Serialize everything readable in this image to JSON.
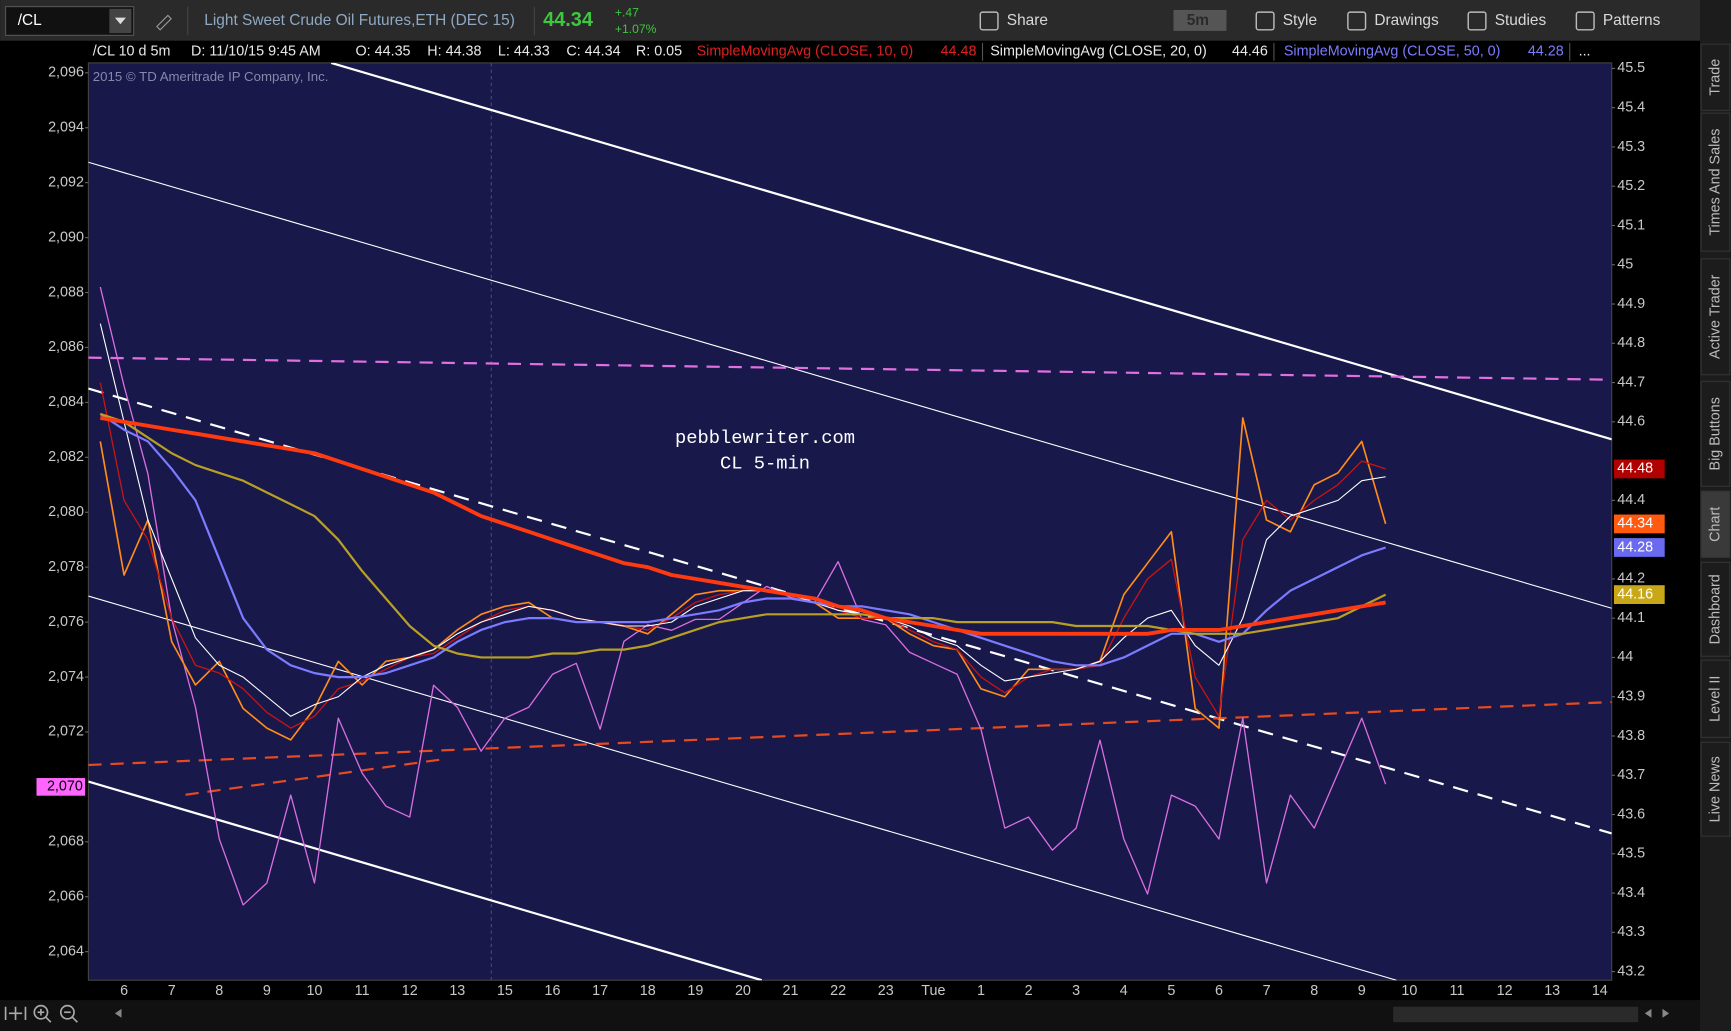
{
  "toolbar": {
    "symbol": "/CL",
    "description": "Light Sweet Crude Oil Futures,ETH (DEC 15)",
    "last": "44.34",
    "change": "+.47",
    "change_pct": "+1.07%",
    "buttons": [
      "Share",
      "5m",
      "Style",
      "Drawings",
      "Studies",
      "Patterns"
    ]
  },
  "info_bar": {
    "symbol": "/CL 10 d 5m",
    "date": "D: 11/10/15 9:45 AM",
    "open": "O: 44.35",
    "high": "H: 44.38",
    "low": "L: 44.33",
    "close": "C: 44.34",
    "range": "R: 0.05",
    "more": "..."
  },
  "side_tabs": [
    "Trade",
    "Times And Sales",
    "Active Trader",
    "Big Buttons",
    "Chart",
    "Dashboard",
    "Level II",
    "Live News"
  ],
  "chart_data": {
    "type": "line",
    "watermark": "2015 © TD Ameritrade IP Company, Inc.",
    "annotations": [
      "pebblewriter.com",
      "CL 5-min"
    ],
    "categories": [
      null,
      "6",
      null,
      "7",
      null,
      "8",
      null,
      "9",
      null,
      "10",
      null,
      "11",
      null,
      "12",
      null,
      "13",
      null,
      "15",
      null,
      "16",
      null,
      "17",
      null,
      "18",
      null,
      "19",
      null,
      "20",
      null,
      "21",
      null,
      "22",
      null,
      "23",
      null,
      "Tue",
      null,
      "1",
      null,
      "2",
      null,
      "3",
      null,
      "4",
      null,
      "5",
      null,
      "6",
      null,
      "7",
      null,
      "8",
      null,
      "9",
      null,
      "10",
      null,
      "11",
      null,
      "12",
      null,
      "13",
      null,
      "14"
    ],
    "ylim": [
      2062.96,
      2096.36
    ],
    "yticks": [
      {
        "value": 2096,
        "label": "2,096"
      },
      {
        "value": 2094,
        "label": "2,094"
      },
      {
        "value": 2092,
        "label": "2,092"
      },
      {
        "value": 2090,
        "label": "2,090"
      },
      {
        "value": 2088,
        "label": "2,088"
      },
      {
        "value": 2086,
        "label": "2,086"
      },
      {
        "value": 2084,
        "label": "2,084"
      },
      {
        "value": 2082,
        "label": "2,082"
      },
      {
        "value": 2080,
        "label": "2,080"
      },
      {
        "value": 2078,
        "label": "2,078"
      },
      {
        "value": 2076,
        "label": "2,076"
      },
      {
        "value": 2074,
        "label": "2,074"
      },
      {
        "value": 2072,
        "label": "2,072"
      },
      {
        "value": 2068,
        "label": "2,068"
      },
      {
        "value": 2066,
        "label": "2,066"
      },
      {
        "value": 2064,
        "label": "2,064"
      }
    ],
    "y2lim": [
      43.178,
      45.514
    ],
    "y2ticks": [
      45.5,
      45.4,
      45.3,
      45.2,
      45.1,
      45,
      44.9,
      44.8,
      44.7,
      44.6,
      44.4,
      44.2,
      44.1,
      44,
      43.9,
      43.8,
      43.7,
      43.6,
      43.5,
      43.4,
      43.3,
      43.2
    ],
    "grid": false,
    "series": [
      {
        "color": "#ff8c1a",
        "width": 1.5,
        "axis": "y2",
        "values": [
          44.55,
          44.21,
          44.35,
          44.04,
          43.93,
          43.99,
          43.87,
          43.82,
          43.79,
          43.87,
          43.99,
          43.93,
          43.99,
          44.0,
          44.02,
          44.07,
          44.11,
          44.13,
          44.14,
          44.1,
          44.09,
          44.09,
          44.08,
          44.06,
          44.11,
          44.16,
          44.17,
          44.17,
          44.17,
          44.16,
          44.14,
          44.1,
          44.1,
          44.1,
          44.06,
          44.03,
          44.02,
          43.92,
          43.9,
          43.97,
          43.97,
          43.97,
          43.99,
          44.16,
          44.24,
          44.32,
          43.87,
          43.82,
          44.61,
          44.35,
          44.32,
          44.44,
          44.47,
          44.55,
          44.34,
          null,
          null,
          null,
          null,
          null,
          null,
          null,
          null,
          null
        ]
      },
      {
        "name": "SimpleMovingAvg (CLOSE, 10, 0)",
        "last": 44.48,
        "color": "#c81414",
        "width": 1.2,
        "axis": "y2",
        "values": [
          44.7,
          44.4,
          44.3,
          44.1,
          43.98,
          43.96,
          43.92,
          43.86,
          43.82,
          43.85,
          43.92,
          43.94,
          43.97,
          44.0,
          44.01,
          44.05,
          44.09,
          44.12,
          44.13,
          44.12,
          44.1,
          44.09,
          44.08,
          44.07,
          44.1,
          44.14,
          44.16,
          44.17,
          44.17,
          44.16,
          44.15,
          44.12,
          44.1,
          44.1,
          44.07,
          44.04,
          44.02,
          43.95,
          43.91,
          43.95,
          43.97,
          43.97,
          43.98,
          44.1,
          44.2,
          44.25,
          43.95,
          43.85,
          44.3,
          44.4,
          44.35,
          44.4,
          44.44,
          44.5,
          44.48,
          null,
          null,
          null,
          null,
          null,
          null,
          null,
          null,
          null
        ]
      },
      {
        "name": "SimpleMovingAvg (CLOSE, 20, 0)",
        "last": 44.46,
        "color": "#ffffff",
        "width": 1,
        "axis": "y2",
        "values": [
          44.85,
          44.6,
          44.35,
          44.2,
          44.05,
          43.98,
          43.95,
          43.9,
          43.85,
          43.88,
          43.9,
          43.95,
          43.98,
          44.0,
          44.02,
          44.06,
          44.09,
          44.11,
          44.13,
          44.12,
          44.1,
          44.09,
          44.08,
          44.08,
          44.09,
          44.13,
          44.15,
          44.17,
          44.17,
          44.16,
          44.14,
          44.12,
          44.11,
          44.1,
          44.08,
          44.05,
          44.03,
          43.98,
          43.94,
          43.95,
          43.96,
          43.97,
          43.99,
          44.05,
          44.1,
          44.12,
          44.03,
          43.98,
          44.1,
          44.3,
          44.36,
          44.38,
          44.4,
          44.45,
          44.46,
          null,
          null,
          null,
          null,
          null,
          null,
          null,
          null,
          null
        ]
      },
      {
        "name": "SimpleMovingAvg (CLOSE, 50, 0)",
        "last": 44.28,
        "color": "#7b7bff",
        "width": 2,
        "axis": "y2",
        "values": [
          44.62,
          44.58,
          44.55,
          44.48,
          44.4,
          44.25,
          44.1,
          44.02,
          43.98,
          43.96,
          43.95,
          43.95,
          43.96,
          43.98,
          44.0,
          44.04,
          44.07,
          44.09,
          44.1,
          44.1,
          44.09,
          44.09,
          44.09,
          44.09,
          44.1,
          44.11,
          44.12,
          44.14,
          44.15,
          44.15,
          44.14,
          44.13,
          44.13,
          44.12,
          44.11,
          44.09,
          44.07,
          44.05,
          44.03,
          44.01,
          43.99,
          43.98,
          43.98,
          44.0,
          44.03,
          44.06,
          44.06,
          44.04,
          44.06,
          44.12,
          44.17,
          44.2,
          44.23,
          44.26,
          44.28,
          null,
          null,
          null,
          null,
          null,
          null,
          null,
          null,
          null
        ]
      },
      {
        "color": "#b8a024",
        "width": 2,
        "axis": "y2",
        "values": [
          44.62,
          44.6,
          44.56,
          44.52,
          44.49,
          44.47,
          44.45,
          44.42,
          44.39,
          44.36,
          44.3,
          44.22,
          44.15,
          44.08,
          44.03,
          44.01,
          44.0,
          44.0,
          44.0,
          44.01,
          44.01,
          44.02,
          44.02,
          44.03,
          44.05,
          44.07,
          44.09,
          44.1,
          44.11,
          44.11,
          44.11,
          44.11,
          44.11,
          44.1,
          44.1,
          44.1,
          44.09,
          44.09,
          44.09,
          44.09,
          44.09,
          44.08,
          44.08,
          44.08,
          44.08,
          44.07,
          44.06,
          44.06,
          44.06,
          44.07,
          44.08,
          44.09,
          44.1,
          44.13,
          44.16,
          null,
          null,
          null,
          null,
          null,
          null,
          null,
          null,
          null
        ]
      },
      {
        "color": "#ff3a10",
        "width": 3.5,
        "axis": "y2",
        "values": [
          44.61,
          44.6,
          44.59,
          44.58,
          44.57,
          44.56,
          44.55,
          44.54,
          44.53,
          44.52,
          44.5,
          44.48,
          44.46,
          44.44,
          44.42,
          44.39,
          44.36,
          44.34,
          44.32,
          44.3,
          44.28,
          44.26,
          44.24,
          44.23,
          44.21,
          44.2,
          44.19,
          44.18,
          44.17,
          44.16,
          44.15,
          44.13,
          44.12,
          44.1,
          44.09,
          44.08,
          44.07,
          44.06,
          44.06,
          44.06,
          44.06,
          44.06,
          44.06,
          44.06,
          44.06,
          44.07,
          44.07,
          44.07,
          44.08,
          44.09,
          44.1,
          44.11,
          44.12,
          44.13,
          44.14,
          null,
          null,
          null,
          null,
          null,
          null,
          null,
          null,
          null
        ]
      },
      {
        "color": "#d86ee0",
        "width": 1.2,
        "axis": "y",
        "values": [
          2088.2,
          2084.6,
          2081.4,
          2076.1,
          2072.9,
          2068.1,
          2065.7,
          2066.5,
          2069.7,
          2066.5,
          2072.5,
          2070.5,
          2069.3,
          2068.9,
          2073.7,
          2072.9,
          2071.3,
          2072.5,
          2072.9,
          2074.1,
          2074.5,
          2072.1,
          2075.3,
          2075.9,
          2075.7,
          2076.1,
          2076.1,
          2076.7,
          2077.3,
          2076.9,
          2076.7,
          2078.2,
          2076.1,
          2075.9,
          2074.9,
          2074.5,
          2074.1,
          2072.1,
          2068.5,
          2068.9,
          2067.7,
          2068.5,
          2071.7,
          2068.1,
          2066.1,
          2069.7,
          2069.3,
          2068.1,
          2072.5,
          2066.5,
          2069.7,
          2068.5,
          2070.5,
          2072.5,
          2070.1,
          null,
          null,
          null,
          null,
          null,
          null,
          null,
          null,
          null
        ]
      }
    ],
    "price_tags": [
      {
        "value": 44.48,
        "color": "#b00000"
      },
      {
        "value": 44.34,
        "color": "#ff5a10"
      },
      {
        "value": 44.28,
        "color": "#6a6af0"
      },
      {
        "value": 44.16,
        "color": "#c8a818"
      }
    ],
    "left_tags": [
      {
        "value": 2070,
        "label": "2,070",
        "color": "#ff66ff"
      }
    ]
  }
}
